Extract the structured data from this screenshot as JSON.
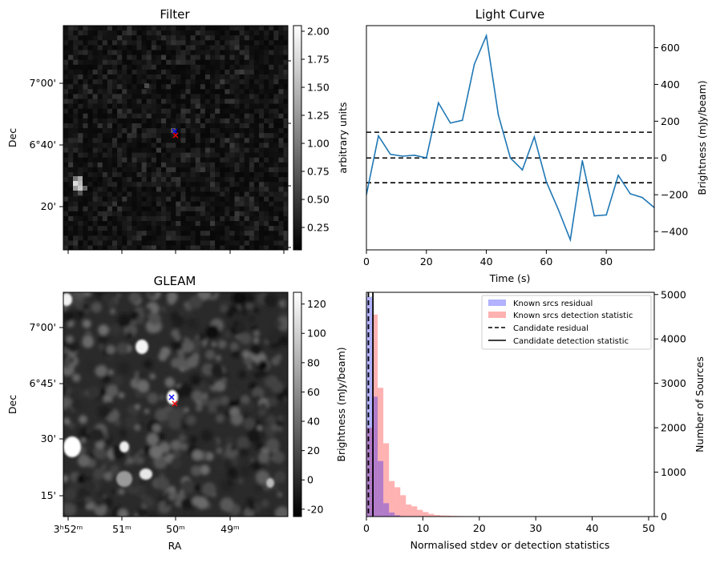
{
  "chart_data": [
    {
      "type": "heatmap",
      "title": "Filter",
      "ylabel": "Dec",
      "yticks": [
        "7°00'",
        "6°40'",
        "20'"
      ],
      "colorbar": {
        "label": "arbitrary units",
        "ticks": [
          "0.25",
          "0.50",
          "0.75",
          "1.00",
          "1.25",
          "1.50",
          "1.75",
          "2.00"
        ],
        "range": [
          0.05,
          2.05
        ],
        "colormap": "gray"
      },
      "markers": [
        {
          "symbol": "x",
          "color": "#0000ff"
        },
        {
          "symbol": "x",
          "color": "#ff0000"
        }
      ]
    },
    {
      "type": "line",
      "title": "Light Curve",
      "xlabel": "Time (s)",
      "ylabel": "Brightness (mJy/beam)",
      "xlim": [
        0,
        96
      ],
      "ylim": [
        -500,
        720
      ],
      "xticks": [
        "0",
        "20",
        "40",
        "60",
        "80"
      ],
      "yticks": [
        "-400",
        "-200",
        "0",
        "200",
        "400",
        "600"
      ],
      "series": [
        {
          "color": "#1f77b4",
          "x": [
            0,
            4,
            8,
            12,
            16,
            20,
            24,
            28,
            32,
            36,
            40,
            44,
            48,
            52,
            56,
            60,
            64,
            68,
            72,
            76,
            80,
            84,
            88,
            92,
            96
          ],
          "y": [
            -200,
            120,
            20,
            10,
            15,
            0,
            300,
            190,
            205,
            510,
            665,
            235,
            0,
            -65,
            115,
            -130,
            -280,
            -445,
            -15,
            -315,
            -310,
            -95,
            -195,
            -215,
            -270
          ]
        }
      ],
      "hlines": [
        {
          "y": 140,
          "style": "dashed",
          "color": "#000000"
        },
        {
          "y": 0,
          "style": "dashed",
          "color": "#000000"
        },
        {
          "y": -135,
          "style": "dashed",
          "color": "#000000"
        }
      ]
    },
    {
      "type": "heatmap",
      "title": "GLEAM",
      "xlabel": "RA",
      "ylabel": "Dec",
      "xticks": [
        "3ʰ52ᵐ",
        "51ᵐ",
        "50ᵐ",
        "49ᵐ"
      ],
      "yticks": [
        "7°00'",
        "6°45'",
        "30'",
        "15'"
      ],
      "colorbar": {
        "label": "Brightness (mJy/beam)",
        "ticks": [
          "-20",
          "0",
          "20",
          "40",
          "60",
          "80",
          "100",
          "120"
        ],
        "range": [
          -25,
          128
        ],
        "colormap": "gray"
      },
      "markers": [
        {
          "symbol": "x",
          "color": "#0000ff"
        },
        {
          "symbol": "x",
          "color": "#ff0000"
        }
      ]
    },
    {
      "type": "bar",
      "xlabel": "Normalised stdev or detection statistics",
      "ylabel": "Number of Sources",
      "xlim": [
        0,
        51
      ],
      "ylim": [
        0,
        5050
      ],
      "xticks": [
        "0",
        "10",
        "20",
        "30",
        "40",
        "50"
      ],
      "yticks": [
        "0",
        "1000",
        "2000",
        "3000",
        "4000",
        "5000"
      ],
      "bin_width": 1,
      "series": [
        {
          "name": "Known srcs residual",
          "color": "#0000ff",
          "alpha": 0.3,
          "bin_starts": [
            0,
            1,
            2,
            3,
            4,
            5,
            6,
            7
          ],
          "values": [
            4950,
            2700,
            1250,
            300,
            90,
            30,
            10,
            5
          ]
        },
        {
          "name": "Known srcs detection statistic",
          "color": "#ff0000",
          "alpha": 0.3,
          "bin_starts": [
            0,
            1,
            2,
            3,
            4,
            5,
            6,
            7,
            8,
            9,
            10,
            11,
            12,
            13,
            14,
            15,
            16,
            17,
            18,
            20,
            22,
            25,
            30,
            35,
            40,
            48
          ],
          "values": [
            2000,
            4550,
            2900,
            1650,
            800,
            660,
            480,
            270,
            230,
            150,
            100,
            60,
            35,
            25,
            20,
            15,
            12,
            10,
            8,
            6,
            5,
            4,
            3,
            3,
            2,
            2
          ]
        }
      ],
      "vlines": [
        {
          "name": "Candidate residual",
          "x": 0.35,
          "style": "dashed",
          "color": "#000000"
        },
        {
          "name": "Candidate detection statistic",
          "x": 1.15,
          "style": "solid",
          "color": "#000000"
        }
      ],
      "legend": "top-right"
    }
  ]
}
